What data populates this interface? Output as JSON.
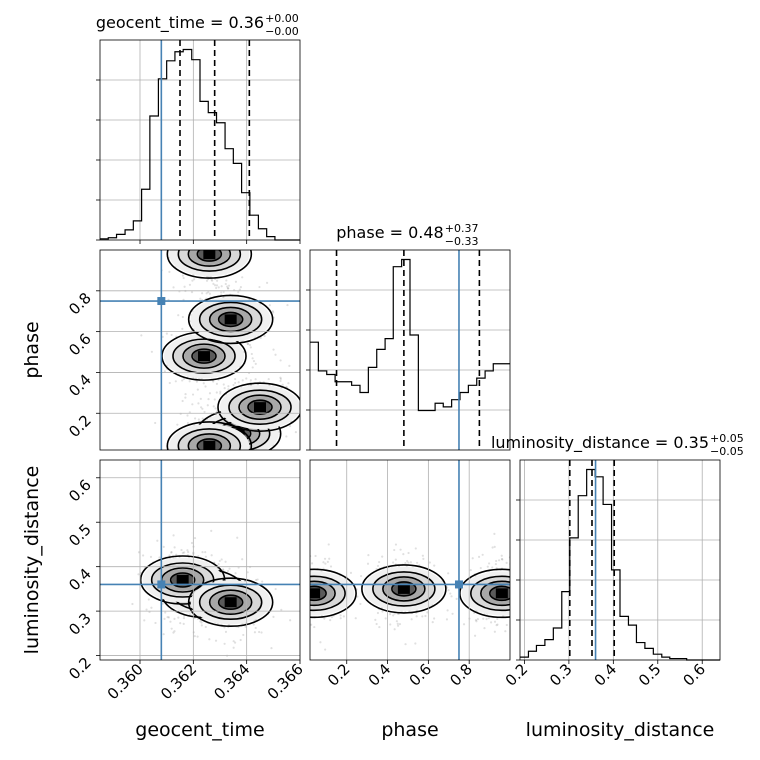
{
  "chart_data": [
    {
      "type": "histogram",
      "panel": "geocent_time-1d",
      "title": {
        "main": "geocent_time = 0.36",
        "sup": "+0.00",
        "sub": "−0.00"
      },
      "x": {
        "label": "",
        "range": [
          0.3585,
          0.366
        ],
        "ticks": [
          0.36,
          0.362,
          0.364,
          0.366
        ],
        "tick_labels": []
      },
      "quantiles": [
        0.3615,
        0.3628,
        0.3641
      ],
      "truth": 0.3608,
      "bin_edges": [
        0.3585,
        0.35881,
        0.35912,
        0.35944,
        0.35975,
        0.36006,
        0.36037,
        0.36069,
        0.361,
        0.36131,
        0.36162,
        0.36194,
        0.36225,
        0.36256,
        0.36287,
        0.36319,
        0.3635,
        0.36381,
        0.36412,
        0.36444,
        0.36475,
        0.36506,
        0.36537,
        0.36569,
        0.366
      ],
      "counts": [
        1,
        2,
        5,
        9,
        17,
        45,
        110,
        143,
        159,
        167,
        169,
        160,
        123,
        113,
        104,
        81,
        68,
        42,
        22,
        10,
        3,
        0,
        0,
        0
      ],
      "grid": true
    },
    {
      "type": "histogram",
      "panel": "phase-1d",
      "title": {
        "main": "phase = 0.48",
        "sup": "+0.37",
        "sub": "−0.33"
      },
      "x": {
        "label": "",
        "range": [
          0.02,
          1.0
        ],
        "tick_labels": []
      },
      "quantiles": [
        0.15,
        0.48,
        0.85
      ],
      "truth": 0.75,
      "bin_edges": [
        0.02,
        0.061,
        0.102,
        0.143,
        0.183,
        0.224,
        0.265,
        0.306,
        0.347,
        0.388,
        0.428,
        0.469,
        0.51,
        0.551,
        0.592,
        0.633,
        0.673,
        0.714,
        0.755,
        0.796,
        0.837,
        0.878,
        0.918,
        0.959,
        1.0
      ],
      "counts": [
        30,
        22,
        21,
        19,
        19,
        18,
        16,
        23,
        28,
        31,
        51,
        53,
        32,
        11,
        11,
        13,
        12,
        14,
        16,
        18,
        20,
        22,
        24,
        24
      ],
      "grid": true
    },
    {
      "type": "histogram",
      "panel": "luminosity_distance-1d",
      "title": {
        "main": "luminosity_distance = 0.35",
        "sup": "+0.05",
        "sub": "−0.05"
      },
      "x": {
        "label": "luminosity_distance",
        "range": [
          0.19,
          0.64
        ],
        "ticks": [
          0.2,
          0.3,
          0.4,
          0.5,
          0.6
        ],
        "tick_labels": [
          "0.2",
          "0.3",
          "0.4",
          "0.5",
          "0.6"
        ]
      },
      "quantiles": [
        0.302,
        0.352,
        0.402
      ],
      "truth": 0.36,
      "bin_edges": [
        0.19,
        0.209,
        0.227,
        0.246,
        0.265,
        0.284,
        0.302,
        0.321,
        0.34,
        0.359,
        0.377,
        0.396,
        0.415,
        0.434,
        0.452,
        0.471,
        0.49,
        0.509,
        0.527,
        0.546,
        0.565,
        0.584,
        0.602,
        0.621,
        0.64
      ],
      "counts": [
        2,
        6,
        10,
        14,
        22,
        47,
        84,
        113,
        131,
        126,
        107,
        62,
        30,
        24,
        12,
        8,
        4,
        2,
        1,
        1,
        0,
        0,
        0,
        0
      ],
      "grid": true
    },
    {
      "type": "scatter_density",
      "panel": "phase-vs-geocent_time",
      "x": {
        "label": "",
        "range": [
          0.3585,
          0.366
        ],
        "tick_labels": []
      },
      "y": {
        "label": "phase",
        "range": [
          0.02,
          1.0
        ],
        "ticks": [
          0.2,
          0.4,
          0.6,
          0.8
        ],
        "tick_labels": [
          "0.2",
          "0.4",
          "0.6",
          "0.8"
        ]
      },
      "truth": [
        0.3608,
        0.75
      ],
      "density_centers": [
        [
          0.3624,
          0.48
        ],
        [
          0.3626,
          0.98
        ],
        [
          0.3634,
          0.66
        ],
        [
          0.3637,
          0.1
        ],
        [
          0.3645,
          0.23
        ],
        [
          0.3626,
          0.04
        ]
      ],
      "grid": true
    },
    {
      "type": "scatter_density",
      "panel": "luminosity_distance-vs-geocent_time",
      "x": {
        "label": "geocent_time",
        "range": [
          0.3585,
          0.366
        ],
        "ticks": [
          0.36,
          0.362,
          0.364,
          0.366
        ],
        "tick_labels": [
          "0.360",
          "0.362",
          "0.364",
          "0.366"
        ]
      },
      "y": {
        "label": "luminosity_distance",
        "range": [
          0.19,
          0.64
        ],
        "ticks": [
          0.2,
          0.3,
          0.4,
          0.5,
          0.6
        ],
        "tick_labels": [
          "0.2",
          "0.3",
          "0.4",
          "0.5",
          "0.6"
        ]
      },
      "truth": [
        0.3608,
        0.36
      ],
      "density_centers": [
        [
          0.3624,
          0.34
        ],
        [
          0.3616,
          0.37
        ],
        [
          0.3634,
          0.32
        ]
      ],
      "grid": true
    },
    {
      "type": "scatter_density",
      "panel": "luminosity_distance-vs-phase",
      "x": {
        "label": "phase",
        "range": [
          0.02,
          1.0
        ],
        "ticks": [
          0.2,
          0.4,
          0.6,
          0.8
        ],
        "tick_labels": [
          "0.2",
          "0.4",
          "0.6",
          "0.8"
        ]
      },
      "y": {
        "label": "",
        "range": [
          0.19,
          0.64
        ],
        "tick_labels": []
      },
      "truth": [
        0.75,
        0.36
      ],
      "density_centers": [
        [
          0.48,
          0.35
        ],
        [
          0.04,
          0.34
        ],
        [
          0.96,
          0.34
        ]
      ],
      "grid": true
    }
  ],
  "colors": {
    "truth": "#4682b4",
    "quantile": "#000000",
    "hist": "#000000",
    "grid": "#b0b0b0"
  }
}
